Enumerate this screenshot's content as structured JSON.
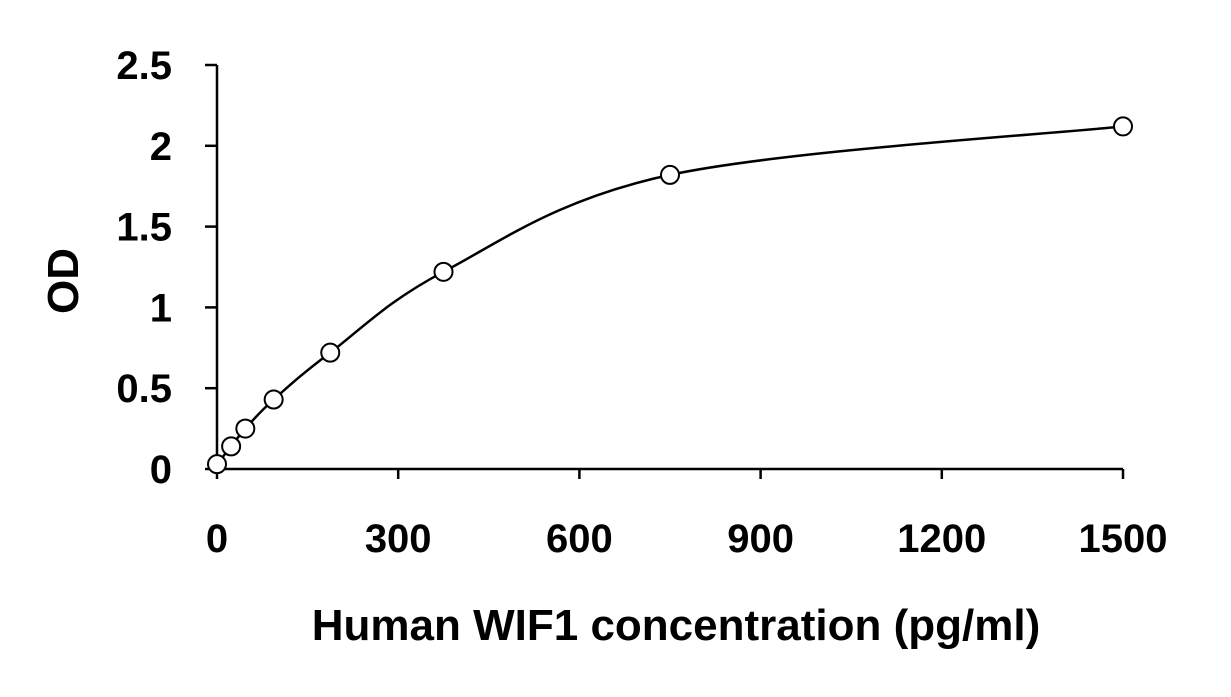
{
  "chart_data": {
    "type": "scatter",
    "xlabel": "Human WIF1 concentration (pg/ml)",
    "ylabel": "OD",
    "xlim": [
      0,
      1500
    ],
    "ylim": [
      0,
      2.5
    ],
    "x_ticks": [
      0,
      300,
      600,
      900,
      1200,
      1500
    ],
    "y_ticks": [
      0,
      0.5,
      1,
      1.5,
      2,
      2.5
    ],
    "x_tick_labels": [
      "0",
      "300",
      "600",
      "900",
      "1200",
      "1500"
    ],
    "y_tick_labels": [
      "0",
      "0.5",
      "1",
      "1.5",
      "2",
      "2.5"
    ],
    "grid": false,
    "series": [
      {
        "points": [
          {
            "x": 0,
            "y": 0.03
          },
          {
            "x": 23.4,
            "y": 0.14
          },
          {
            "x": 46.9,
            "y": 0.25
          },
          {
            "x": 93.8,
            "y": 0.43
          },
          {
            "x": 187.5,
            "y": 0.72
          },
          {
            "x": 375,
            "y": 1.22
          },
          {
            "x": 750,
            "y": 1.82
          },
          {
            "x": 1500,
            "y": 2.12
          }
        ],
        "marker": "open-circle",
        "fit": "smooth-curve",
        "color": "#000000"
      }
    ]
  }
}
